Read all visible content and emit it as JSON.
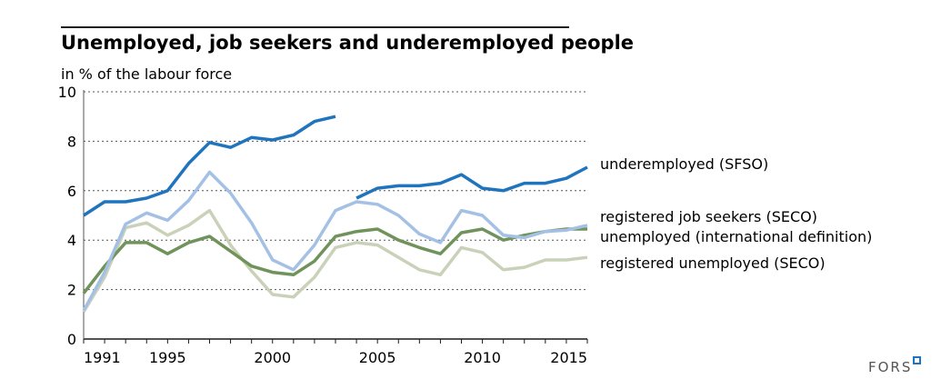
{
  "chart_data": {
    "type": "line",
    "title": "Unemployed, job seekers and underemployed people",
    "ylabel": "in % of the labour force",
    "xlabel": "",
    "ylim": [
      0,
      10
    ],
    "xlim": [
      1991,
      2015
    ],
    "yticks": [
      0,
      2,
      4,
      6,
      8,
      10
    ],
    "xticks": [
      1991,
      1995,
      2000,
      2005,
      2010,
      2015
    ],
    "grid": true,
    "x": [
      1991,
      1992,
      1993,
      1994,
      1995,
      1996,
      1997,
      1998,
      1999,
      2000,
      2001,
      2002,
      2003,
      2004,
      2005,
      2006,
      2007,
      2008,
      2009,
      2010,
      2011,
      2012,
      2013,
      2014,
      2015
    ],
    "series": [
      {
        "name": "underemployed (SFSO)",
        "color": "#1f74bd",
        "values": [
          5.0,
          5.55,
          5.55,
          5.7,
          6.0,
          7.1,
          7.95,
          7.75,
          8.15,
          8.05,
          8.25,
          8.8,
          9.0,
          5.7,
          6.1,
          6.2,
          6.2,
          6.3,
          6.65,
          6.1,
          6.0,
          6.3,
          6.3,
          6.5,
          6.95
        ],
        "gaps_after": [
          2003
        ]
      },
      {
        "name": "registered job seekers (SECO)",
        "color": "#a4c1e5",
        "values": [
          1.15,
          2.7,
          4.65,
          5.1,
          4.8,
          5.6,
          6.75,
          5.9,
          4.7,
          3.2,
          2.8,
          3.8,
          5.2,
          5.55,
          5.45,
          5.0,
          4.25,
          3.9,
          5.2,
          5.0,
          4.2,
          4.1,
          4.35,
          4.4,
          4.6
        ]
      },
      {
        "name": "unemployed (international definition)",
        "color": "#6f935a",
        "values": [
          1.85,
          2.95,
          3.9,
          3.9,
          3.45,
          3.9,
          4.15,
          3.55,
          2.95,
          2.7,
          2.6,
          3.15,
          4.15,
          4.35,
          4.45,
          4.0,
          3.7,
          3.45,
          4.3,
          4.45,
          4.0,
          4.2,
          4.35,
          4.45,
          4.45
        ]
      },
      {
        "name": "registered unemployed (SECO)",
        "color": "#c9d2b9",
        "values": [
          1.1,
          2.5,
          4.5,
          4.7,
          4.2,
          4.6,
          5.2,
          3.8,
          2.75,
          1.8,
          1.7,
          2.5,
          3.7,
          3.9,
          3.8,
          3.3,
          2.8,
          2.6,
          3.7,
          3.5,
          2.8,
          2.9,
          3.2,
          3.2,
          3.3
        ]
      }
    ]
  },
  "footer": {
    "brand": "FORS",
    "brand_accent": "#1f74bd"
  }
}
